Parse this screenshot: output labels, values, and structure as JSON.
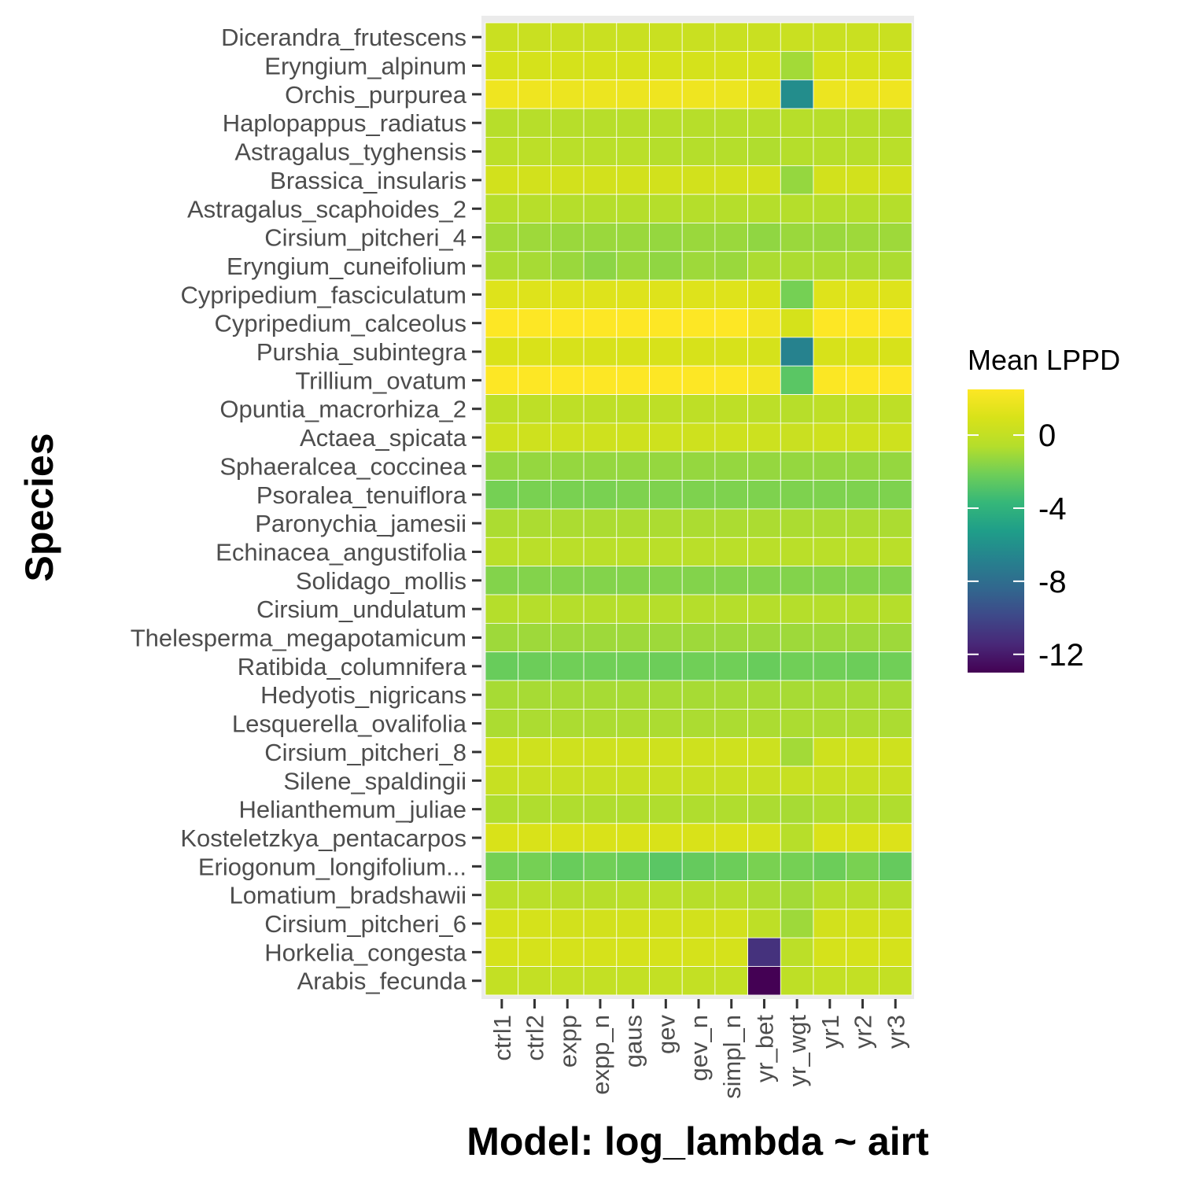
{
  "chart_data": {
    "type": "heatmap",
    "xlabel": "Model: log_lambda ~ airt",
    "ylabel": "Species",
    "legend": {
      "title": "Mean LPPD",
      "ticks": [
        0,
        -4,
        -8,
        -12
      ],
      "range": [
        -13,
        2.5
      ],
      "placement": "right"
    },
    "x": [
      "ctrl1",
      "ctrl2",
      "expp",
      "expp_n",
      "gaus",
      "gev",
      "gev_n",
      "simpl_n",
      "yr_bet",
      "yr_wgt",
      "yr1",
      "yr2",
      "yr3"
    ],
    "y": [
      "Dicerandra_frutescens",
      "Eryngium_alpinum",
      "Orchis_purpurea",
      "Haplopappus_radiatus",
      "Astragalus_tyghensis",
      "Brassica_insularis",
      "Astragalus_scaphoides_2",
      "Cirsium_pitcheri_4",
      "Eryngium_cuneifolium",
      "Cypripedium_fasciculatum",
      "Cypripedium_calceolus",
      "Purshia_subintegra",
      "Trillium_ovatum",
      "Opuntia_macrorhiza_2",
      "Actaea_spicata",
      "Sphaeralcea_coccinea",
      "Psoralea_tenuiflora",
      "Paronychia_jamesii",
      "Echinacea_angustifolia",
      "Solidago_mollis",
      "Cirsium_undulatum",
      "Thelesperma_megapotamicum",
      "Ratibida_columnifera",
      "Hedyotis_nigricans",
      "Lesquerella_ovalifolia",
      "Cirsium_pitcheri_8",
      "Silene_spaldingii",
      "Helianthemum_juliae",
      "Kosteletzkya_pentacarpos",
      "Eriogonum_longifolium...",
      "Lomatium_bradshawii",
      "Cirsium_pitcheri_6",
      "Horkelia_congesta",
      "Arabis_fecunda"
    ],
    "values": [
      [
        0.3,
        0.3,
        0.3,
        0.3,
        0.3,
        0.3,
        0.3,
        0.3,
        0.3,
        0.3,
        0.3,
        0.3,
        0.3
      ],
      [
        0.8,
        0.8,
        0.8,
        0.8,
        0.8,
        0.8,
        0.8,
        0.8,
        0.8,
        -1.0,
        0.8,
        0.8,
        0.8
      ],
      [
        1.9,
        1.9,
        1.8,
        1.8,
        1.8,
        1.9,
        1.9,
        1.8,
        1.5,
        -6.2,
        1.8,
        1.8,
        1.9
      ],
      [
        -0.5,
        -0.5,
        -0.5,
        -0.5,
        -0.5,
        -0.5,
        -0.5,
        -0.5,
        -0.5,
        -0.5,
        -0.5,
        -0.5,
        -0.5
      ],
      [
        -0.3,
        -0.3,
        -0.4,
        -0.4,
        -0.4,
        -0.6,
        -0.6,
        -0.6,
        -0.7,
        -0.6,
        -0.5,
        -0.5,
        -0.4
      ],
      [
        0.7,
        0.7,
        0.7,
        0.7,
        0.7,
        0.7,
        0.7,
        0.7,
        0.7,
        -1.3,
        0.7,
        0.7,
        0.7
      ],
      [
        -0.5,
        -0.5,
        -0.6,
        -0.6,
        -0.6,
        -0.6,
        -0.6,
        -0.6,
        -0.6,
        -0.6,
        -0.6,
        -0.6,
        -0.6
      ],
      [
        -1.0,
        -1.1,
        -1.2,
        -1.2,
        -1.2,
        -1.3,
        -1.2,
        -1.2,
        -1.4,
        -1.2,
        -1.2,
        -1.1,
        -1.1
      ],
      [
        -0.8,
        -0.9,
        -1.2,
        -1.5,
        -1.2,
        -1.4,
        -1.1,
        -1.2,
        -0.8,
        -0.8,
        -0.8,
        -0.8,
        -0.8
      ],
      [
        1.2,
        1.2,
        1.2,
        1.2,
        1.2,
        1.2,
        1.2,
        1.2,
        1.0,
        -2.0,
        1.2,
        1.2,
        1.2
      ],
      [
        2.6,
        2.6,
        2.6,
        2.6,
        2.6,
        2.6,
        2.6,
        2.5,
        2.0,
        0.8,
        2.5,
        2.5,
        2.6
      ],
      [
        1.0,
        1.0,
        0.9,
        0.9,
        0.9,
        0.9,
        0.9,
        0.9,
        0.8,
        -6.8,
        0.9,
        0.9,
        0.9
      ],
      [
        2.5,
        2.5,
        2.5,
        2.5,
        2.5,
        2.5,
        2.5,
        2.4,
        2.1,
        -2.7,
        2.4,
        2.5,
        2.5
      ],
      [
        -0.2,
        -0.2,
        -0.2,
        -0.2,
        -0.2,
        -0.2,
        -0.2,
        -0.2,
        -0.3,
        -0.5,
        -0.2,
        -0.2,
        -0.2
      ],
      [
        0.5,
        0.5,
        0.5,
        0.5,
        0.5,
        0.5,
        0.5,
        0.5,
        0.4,
        0.3,
        0.5,
        0.5,
        0.5
      ],
      [
        -1.3,
        -1.3,
        -1.3,
        -1.3,
        -1.3,
        -1.3,
        -1.3,
        -1.3,
        -1.3,
        -1.3,
        -1.3,
        -1.3,
        -1.3
      ],
      [
        -2.0,
        -1.9,
        -1.9,
        -1.9,
        -1.8,
        -1.8,
        -1.8,
        -1.8,
        -1.8,
        -1.8,
        -1.8,
        -1.8,
        -1.8
      ],
      [
        -0.8,
        -0.8,
        -0.8,
        -0.8,
        -0.8,
        -0.8,
        -0.8,
        -0.8,
        -0.8,
        -0.8,
        -0.8,
        -0.8,
        -0.8
      ],
      [
        -0.4,
        -0.4,
        -0.4,
        -0.4,
        -0.4,
        -0.4,
        -0.4,
        -0.4,
        -0.4,
        -0.4,
        -0.4,
        -0.4,
        -0.4
      ],
      [
        -1.7,
        -1.7,
        -1.7,
        -1.7,
        -1.7,
        -1.7,
        -1.7,
        -1.7,
        -1.7,
        -1.7,
        -1.7,
        -1.7,
        -1.7
      ],
      [
        -0.6,
        -0.6,
        -0.6,
        -0.6,
        -0.6,
        -0.6,
        -0.6,
        -0.6,
        -0.6,
        -0.6,
        -0.6,
        -0.6,
        -0.6
      ],
      [
        -1.1,
        -1.1,
        -1.1,
        -1.1,
        -1.1,
        -1.1,
        -1.1,
        -1.1,
        -1.1,
        -1.1,
        -1.1,
        -1.1,
        -1.1
      ],
      [
        -2.3,
        -2.2,
        -2.1,
        -2.1,
        -2.1,
        -2.2,
        -2.1,
        -2.1,
        -2.3,
        -2.1,
        -2.1,
        -2.2,
        -2.1
      ],
      [
        -0.9,
        -0.9,
        -0.9,
        -0.9,
        -0.9,
        -0.9,
        -0.9,
        -0.9,
        -0.9,
        -0.9,
        -0.9,
        -0.9,
        -0.9
      ],
      [
        -0.8,
        -0.8,
        -0.8,
        -0.8,
        -0.8,
        -0.8,
        -0.8,
        -0.8,
        -0.8,
        -0.8,
        -0.8,
        -0.8,
        -0.8
      ],
      [
        0.5,
        0.5,
        0.5,
        0.5,
        0.5,
        0.5,
        0.5,
        0.5,
        0.4,
        -1.0,
        0.5,
        0.5,
        0.5
      ],
      [
        0.2,
        0.2,
        0.2,
        0.2,
        0.2,
        0.2,
        0.2,
        0.2,
        0.2,
        0.2,
        0.2,
        0.2,
        0.2
      ],
      [
        -0.7,
        -0.7,
        -0.7,
        -0.7,
        -0.7,
        -0.7,
        -0.7,
        -0.7,
        -0.8,
        -0.9,
        -0.7,
        -0.7,
        -0.7
      ],
      [
        1.0,
        1.0,
        1.0,
        1.0,
        1.0,
        1.0,
        1.0,
        1.0,
        0.8,
        -0.5,
        1.0,
        1.0,
        1.1
      ],
      [
        -2.0,
        -2.0,
        -2.3,
        -2.1,
        -2.3,
        -2.7,
        -2.4,
        -2.2,
        -1.9,
        -2.0,
        -2.2,
        -1.9,
        -2.4
      ],
      [
        -0.4,
        -0.4,
        -0.5,
        -0.5,
        -0.4,
        -0.4,
        -0.5,
        -0.5,
        -0.8,
        -1.0,
        -0.5,
        -0.5,
        -0.5
      ],
      [
        0.8,
        0.8,
        0.7,
        0.7,
        0.7,
        0.7,
        0.7,
        0.7,
        -0.2,
        -1.1,
        0.7,
        0.7,
        0.7
      ],
      [
        0.8,
        0.8,
        0.8,
        0.8,
        0.8,
        0.8,
        0.8,
        0.8,
        -11.0,
        -0.3,
        0.8,
        0.8,
        0.8
      ],
      [
        0.0,
        0.0,
        0.0,
        0.0,
        0.0,
        0.0,
        0.0,
        0.0,
        -13.0,
        -0.2,
        0.0,
        0.0,
        0.0
      ]
    ]
  }
}
